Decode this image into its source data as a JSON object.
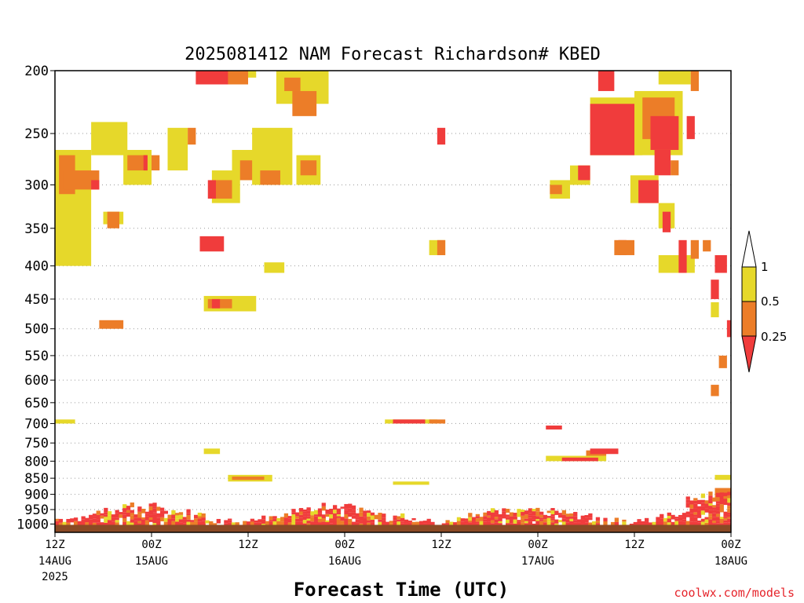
{
  "chart_data": {
    "type": "heatmap",
    "title": "2025081412 NAM Forecast Richardson# KBED",
    "xlabel": "Forecast Time (UTC)",
    "credit": "coolwx.com/models",
    "y_axis": {
      "scale": "pressure",
      "range": [
        1000,
        200
      ],
      "ticks": [
        "200",
        "250",
        "300",
        "350",
        "400",
        "450",
        "500",
        "550",
        "600",
        "650",
        "700",
        "750",
        "800",
        "850",
        "900",
        "950",
        "1000"
      ],
      "gridlines": true
    },
    "x_axis": {
      "range_hours": [
        0,
        84
      ],
      "ticks": [
        {
          "hour": 0,
          "time": "12Z",
          "date": "14AUG",
          "year": "2025"
        },
        {
          "hour": 12,
          "time": "00Z",
          "date": "15AUG",
          "year": ""
        },
        {
          "hour": 24,
          "time": "12Z",
          "date": "",
          "year": ""
        },
        {
          "hour": 36,
          "time": "00Z",
          "date": "16AUG",
          "year": ""
        },
        {
          "hour": 48,
          "time": "12Z",
          "date": "",
          "year": ""
        },
        {
          "hour": 60,
          "time": "00Z",
          "date": "17AUG",
          "year": ""
        },
        {
          "hour": 72,
          "time": "12Z",
          "date": "",
          "year": ""
        },
        {
          "hour": 84,
          "time": "00Z",
          "date": "18AUG",
          "year": ""
        }
      ]
    },
    "colorbar": {
      "levels": [
        "1",
        "0.5",
        "0.25"
      ],
      "colors": {
        "lt_0_25": "#f03c3c",
        "0_25_to_0_5": "#ec7d28",
        "0_5_to_1": "#e6d82a",
        "above_1": "#ffffff"
      }
    },
    "colors": {
      "surface": "#8b4a25"
    },
    "features": [
      {
        "p": [
          [
            0,
            400
          ],
          [
            4.5,
            265
          ]
        ],
        "c": "y"
      },
      {
        "p": [
          [
            0.5,
            310
          ],
          [
            2.5,
            270
          ]
        ],
        "c": "o"
      },
      {
        "p": [
          [
            1,
            305
          ],
          [
            5.5,
            285
          ]
        ],
        "c": "o"
      },
      {
        "p": [
          [
            4.5,
            305
          ],
          [
            5.5,
            295
          ]
        ],
        "c": "r"
      },
      {
        "p": [
          [
            4.5,
            270
          ],
          [
            9,
            240
          ]
        ],
        "c": "y"
      },
      {
        "p": [
          [
            6,
            345
          ],
          [
            8.5,
            330
          ]
        ],
        "c": "y"
      },
      {
        "p": [
          [
            6.5,
            350
          ],
          [
            8,
            330
          ]
        ],
        "c": "o"
      },
      {
        "p": [
          [
            8.5,
            300
          ],
          [
            12,
            265
          ]
        ],
        "c": "y"
      },
      {
        "p": [
          [
            9,
            285
          ],
          [
            11.5,
            270
          ]
        ],
        "c": "o"
      },
      {
        "p": [
          [
            11,
            285
          ],
          [
            11.5,
            270
          ]
        ],
        "c": "r"
      },
      {
        "p": [
          [
            12,
            285
          ],
          [
            13,
            270
          ]
        ],
        "c": "o"
      },
      {
        "p": [
          [
            14,
            285
          ],
          [
            16.5,
            245
          ]
        ],
        "c": "y"
      },
      {
        "p": [
          [
            16.5,
            260
          ],
          [
            17.5,
            245
          ]
        ],
        "c": "o"
      },
      {
        "p": [
          [
            18,
            380
          ],
          [
            21,
            360
          ]
        ],
        "c": "r"
      },
      {
        "p": [
          [
            18,
            205
          ],
          [
            25,
            200
          ]
        ],
        "c": "y"
      },
      {
        "p": [
          [
            17.5,
            210
          ],
          [
            22,
            200
          ]
        ],
        "c": "r"
      },
      {
        "p": [
          [
            21.5,
            210
          ],
          [
            24,
            200
          ]
        ],
        "c": "o"
      },
      {
        "p": [
          [
            19.5,
            320
          ],
          [
            23,
            285
          ]
        ],
        "c": "y"
      },
      {
        "p": [
          [
            20,
            315
          ],
          [
            22,
            295
          ]
        ],
        "c": "o"
      },
      {
        "p": [
          [
            19,
            315
          ],
          [
            20,
            295
          ]
        ],
        "c": "r"
      },
      {
        "p": [
          [
            22,
            295
          ],
          [
            26,
            265
          ]
        ],
        "c": "y"
      },
      {
        "p": [
          [
            23,
            295
          ],
          [
            25.5,
            275
          ]
        ],
        "c": "o"
      },
      {
        "p": [
          [
            24.5,
            300
          ],
          [
            29.5,
            245
          ]
        ],
        "c": "y"
      },
      {
        "p": [
          [
            25.5,
            300
          ],
          [
            28,
            285
          ]
        ],
        "c": "o"
      },
      {
        "p": [
          [
            27.5,
            225
          ],
          [
            34,
            200
          ]
        ],
        "c": "y"
      },
      {
        "p": [
          [
            28.5,
            215
          ],
          [
            30.5,
            205
          ]
        ],
        "c": "o"
      },
      {
        "p": [
          [
            29.5,
            235
          ],
          [
            32.5,
            215
          ]
        ],
        "c": "o"
      },
      {
        "p": [
          [
            30,
            300
          ],
          [
            33,
            270
          ]
        ],
        "c": "y"
      },
      {
        "p": [
          [
            30.5,
            290
          ],
          [
            32.5,
            275
          ]
        ],
        "c": "o"
      },
      {
        "p": [
          [
            26,
            410
          ],
          [
            28.5,
            395
          ]
        ],
        "c": "y"
      },
      {
        "p": [
          [
            18.5,
            470
          ],
          [
            25,
            445
          ]
        ],
        "c": "y"
      },
      {
        "p": [
          [
            19,
            465
          ],
          [
            22,
            450
          ]
        ],
        "c": "o"
      },
      {
        "p": [
          [
            19.5,
            465
          ],
          [
            20.5,
            450
          ]
        ],
        "c": "r"
      },
      {
        "p": [
          [
            5.5,
            500
          ],
          [
            8.5,
            485
          ]
        ],
        "c": "o"
      },
      {
        "p": [
          [
            0,
            700
          ],
          [
            2.5,
            690
          ]
        ],
        "c": "y"
      },
      {
        "p": [
          [
            18.5,
            780
          ],
          [
            20.5,
            765
          ]
        ],
        "c": "y"
      },
      {
        "p": [
          [
            21.5,
            860
          ],
          [
            27,
            840
          ]
        ],
        "c": "y"
      },
      {
        "p": [
          [
            22,
            855
          ],
          [
            26,
            845
          ]
        ],
        "c": "o"
      },
      {
        "p": [
          [
            41,
            700
          ],
          [
            47.5,
            690
          ]
        ],
        "c": "y"
      },
      {
        "p": [
          [
            42,
            700
          ],
          [
            46,
            690
          ]
        ],
        "c": "r"
      },
      {
        "p": [
          [
            46.5,
            700
          ],
          [
            48.5,
            690
          ]
        ],
        "c": "o"
      },
      {
        "p": [
          [
            47.5,
            260
          ],
          [
            48.5,
            245
          ]
        ],
        "c": "r"
      },
      {
        "p": [
          [
            46.5,
            385
          ],
          [
            48.5,
            365
          ]
        ],
        "c": "y"
      },
      {
        "p": [
          [
            47.5,
            385
          ],
          [
            48.5,
            365
          ]
        ],
        "c": "o"
      },
      {
        "p": [
          [
            42,
            870
          ],
          [
            46.5,
            860
          ]
        ],
        "c": "y"
      },
      {
        "p": [
          [
            61.5,
            315
          ],
          [
            64,
            295
          ]
        ],
        "c": "y"
      },
      {
        "p": [
          [
            61.5,
            310
          ],
          [
            63,
            300
          ]
        ],
        "c": "o"
      },
      {
        "p": [
          [
            64,
            300
          ],
          [
            66.5,
            280
          ]
        ],
        "c": "y"
      },
      {
        "p": [
          [
            65,
            295
          ],
          [
            66.5,
            280
          ]
        ],
        "c": "r"
      },
      {
        "p": [
          [
            61,
            715
          ],
          [
            63,
            705
          ]
        ],
        "c": "r"
      },
      {
        "p": [
          [
            61,
            800
          ],
          [
            68.5,
            785
          ]
        ],
        "c": "y"
      },
      {
        "p": [
          [
            63,
            800
          ],
          [
            67.5,
            790
          ]
        ],
        "c": "r"
      },
      {
        "p": [
          [
            66,
            785
          ],
          [
            68.5,
            770
          ]
        ],
        "c": "o"
      },
      {
        "p": [
          [
            66.5,
            780
          ],
          [
            70,
            765
          ]
        ],
        "c": "r"
      },
      {
        "p": [
          [
            66.5,
            270
          ],
          [
            73,
            220
          ]
        ],
        "c": "y"
      },
      {
        "p": [
          [
            66.5,
            270
          ],
          [
            72,
            225
          ]
        ],
        "c": "r"
      },
      {
        "p": [
          [
            67.5,
            215
          ],
          [
            69.5,
            200
          ]
        ],
        "c": "r"
      },
      {
        "p": [
          [
            72,
            270
          ],
          [
            78,
            215
          ]
        ],
        "c": "y"
      },
      {
        "p": [
          [
            73,
            255
          ],
          [
            77,
            220
          ]
        ],
        "c": "o"
      },
      {
        "p": [
          [
            74,
            265
          ],
          [
            77.5,
            235
          ]
        ],
        "c": "r"
      },
      {
        "p": [
          [
            75,
            210
          ],
          [
            79,
            200
          ]
        ],
        "c": "y"
      },
      {
        "p": [
          [
            79,
            215
          ],
          [
            80,
            200
          ]
        ],
        "c": "o"
      },
      {
        "p": [
          [
            78.5,
            255
          ],
          [
            79.5,
            235
          ]
        ],
        "c": "r"
      },
      {
        "p": [
          [
            74.5,
            290
          ],
          [
            76.5,
            265
          ]
        ],
        "c": "r"
      },
      {
        "p": [
          [
            76.5,
            290
          ],
          [
            77.5,
            275
          ]
        ],
        "c": "o"
      },
      {
        "p": [
          [
            71.5,
            320
          ],
          [
            75,
            290
          ]
        ],
        "c": "y"
      },
      {
        "p": [
          [
            72.5,
            320
          ],
          [
            75,
            295
          ]
        ],
        "c": "r"
      },
      {
        "p": [
          [
            75,
            350
          ],
          [
            77,
            320
          ]
        ],
        "c": "y"
      },
      {
        "p": [
          [
            75.5,
            355
          ],
          [
            76.5,
            330
          ]
        ],
        "c": "r"
      },
      {
        "p": [
          [
            70,
            385
          ],
          [
            71,
            365
          ]
        ],
        "c": "r"
      },
      {
        "p": [
          [
            69.5,
            385
          ],
          [
            72,
            365
          ]
        ],
        "c": "o"
      },
      {
        "p": [
          [
            75,
            410
          ],
          [
            79.5,
            385
          ]
        ],
        "c": "y"
      },
      {
        "p": [
          [
            77.5,
            410
          ],
          [
            78.5,
            365
          ]
        ],
        "c": "r"
      },
      {
        "p": [
          [
            79,
            390
          ],
          [
            80,
            365
          ]
        ],
        "c": "o"
      },
      {
        "p": [
          [
            80.5,
            380
          ],
          [
            81.5,
            365
          ]
        ],
        "c": "o"
      },
      {
        "p": [
          [
            82,
            410
          ],
          [
            83.5,
            385
          ]
        ],
        "c": "r"
      },
      {
        "p": [
          [
            81.5,
            450
          ],
          [
            82.5,
            420
          ]
        ],
        "c": "r"
      },
      {
        "p": [
          [
            81.5,
            480
          ],
          [
            82.5,
            455
          ]
        ],
        "c": "y"
      },
      {
        "p": [
          [
            83.5,
            515
          ],
          [
            84,
            485
          ]
        ],
        "c": "r"
      },
      {
        "p": [
          [
            82.5,
            575
          ],
          [
            83.5,
            550
          ]
        ],
        "c": "o"
      },
      {
        "p": [
          [
            81.5,
            635
          ],
          [
            82.5,
            610
          ]
        ],
        "c": "o"
      },
      {
        "p": [
          [
            82,
            855
          ],
          [
            84,
            840
          ]
        ],
        "c": "y"
      },
      {
        "p": [
          [
            82,
            920
          ],
          [
            84,
            880
          ]
        ],
        "c": "o"
      }
    ]
  }
}
